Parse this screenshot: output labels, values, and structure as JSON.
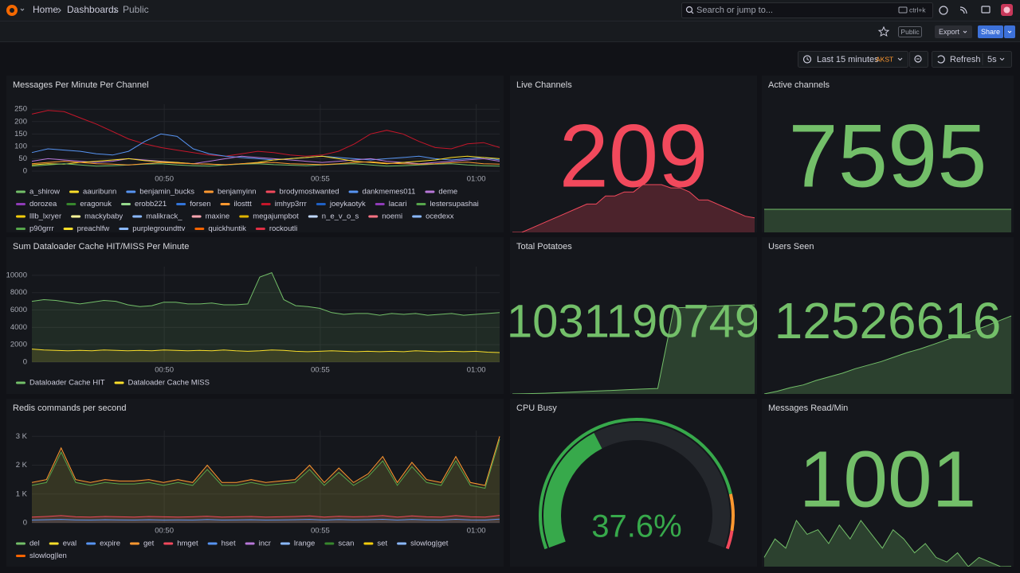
{
  "nav": {
    "breadcrumbs": [
      "Home",
      "Dashboards",
      "Public"
    ],
    "search": "Search or jump to...",
    "shortcut": "ctrl+k"
  },
  "toolbar": {
    "badge": "Public",
    "export": "Export",
    "share": "Share"
  },
  "time_controls": {
    "range": "Last 15 minutes",
    "timezone": "AKST",
    "refresh": "Refresh",
    "interval": "5s"
  },
  "panels": [
    {
      "type": "timeseries",
      "title": "Messages Per Minute Per Channel",
      "ylim": [
        0,
        270
      ],
      "yticks": [
        0,
        50,
        100,
        150,
        200,
        250
      ],
      "xticks": [
        "00:50",
        "00:55",
        "01:00"
      ],
      "fill": false,
      "lines": [
        {
          "color": "#c4162a",
          "values": [
            230,
            245,
            240,
            215,
            190,
            160,
            130,
            110,
            95,
            85,
            75,
            65,
            60,
            70,
            80,
            75,
            65,
            60,
            65,
            80,
            110,
            150,
            165,
            150,
            120,
            95,
            90,
            110,
            115,
            95
          ]
        },
        {
          "color": "#5794f2",
          "values": [
            75,
            90,
            85,
            80,
            70,
            65,
            80,
            120,
            150,
            140,
            90,
            70,
            60,
            55,
            50,
            45,
            50,
            55,
            60,
            55,
            50,
            45,
            50,
            55,
            60,
            50,
            45,
            50,
            55,
            45
          ]
        },
        {
          "color": "#b877d9",
          "values": [
            40,
            50,
            45,
            40,
            35,
            40,
            50,
            45,
            40,
            35,
            30,
            40,
            50,
            60,
            55,
            50,
            45,
            40,
            35,
            40,
            45,
            50,
            40,
            35,
            30,
            35,
            40,
            45,
            50,
            40
          ]
        },
        {
          "color": "#fade2a",
          "values": [
            25,
            30,
            28,
            35,
            40,
            45,
            50,
            42,
            38,
            35,
            30,
            28,
            25,
            30,
            35,
            45,
            50,
            55,
            60,
            50,
            40,
            35,
            30,
            35,
            40,
            45,
            55,
            60,
            55,
            50
          ]
        },
        {
          "color": "#73bf69",
          "values": [
            20,
            25,
            30,
            25,
            20,
            22,
            25,
            28,
            30,
            25,
            22,
            20,
            25,
            28,
            30,
            26,
            24,
            22,
            25,
            28,
            30,
            25,
            20,
            22,
            25,
            28,
            30,
            25,
            22,
            20
          ]
        },
        {
          "color": "#ff9830",
          "values": [
            30,
            35,
            40,
            35,
            30,
            28,
            25,
            30,
            35,
            32,
            30,
            28,
            26,
            30,
            33,
            35,
            30,
            28,
            26,
            30,
            35,
            38,
            32,
            30,
            28,
            30,
            34,
            36,
            30,
            28
          ]
        }
      ],
      "legend": [
        {
          "name": "a_shirow",
          "color": "#73bf69"
        },
        {
          "name": "aauribunn",
          "color": "#fade2a"
        },
        {
          "name": "benjamin_bucks",
          "color": "#5794f2"
        },
        {
          "name": "benjamyinn",
          "color": "#ff9830"
        },
        {
          "name": "brodymostwanted",
          "color": "#f2495c"
        },
        {
          "name": "dankmemes011",
          "color": "#5794f2"
        },
        {
          "name": "deme",
          "color": "#b877d9"
        },
        {
          "name": "dorozea",
          "color": "#8f3bb8"
        },
        {
          "name": "eragonuk",
          "color": "#37872d"
        },
        {
          "name": "erobb221",
          "color": "#96d98d"
        },
        {
          "name": "forsen",
          "color": "#3274d9"
        },
        {
          "name": "ilosttt",
          "color": "#ff9830"
        },
        {
          "name": "imhyp3rrr",
          "color": "#c4162a"
        },
        {
          "name": "joeykaotyk",
          "color": "#1f60c4"
        },
        {
          "name": "lacari",
          "color": "#8f3bb8"
        },
        {
          "name": "lestersupashai",
          "color": "#56a64b"
        },
        {
          "name": "lllb_lxryer",
          "color": "#f2cc0c"
        },
        {
          "name": "mackybaby",
          "color": "#fff899"
        },
        {
          "name": "malikrack_",
          "color": "#8ab8ff"
        },
        {
          "name": "maxine",
          "color": "#ffa6b0"
        },
        {
          "name": "megajumpbot",
          "color": "#e0b400"
        },
        {
          "name": "n_e_v_o_s",
          "color": "#c0d8ff"
        },
        {
          "name": "noemi",
          "color": "#ff7383"
        },
        {
          "name": "ocedexx",
          "color": "#8ab8ff"
        },
        {
          "name": "p90grrr",
          "color": "#56a64b"
        },
        {
          "name": "preachlfw",
          "color": "#fade2a"
        },
        {
          "name": "purplegroundttv",
          "color": "#8ab8ff"
        },
        {
          "name": "quickhuntik",
          "color": "#fa6400"
        },
        {
          "name": "rockoutli",
          "color": "#e02f44"
        }
      ]
    },
    {
      "type": "stat",
      "title": "Live Channels",
      "value": 209,
      "color": "#f2495c",
      "sparkline": [
        150,
        150,
        155,
        160,
        165,
        170,
        175,
        180,
        185,
        185,
        195,
        195,
        200,
        200,
        209,
        209,
        209,
        205,
        205,
        200,
        190,
        190,
        185,
        180,
        175,
        170,
        168
      ]
    },
    {
      "type": "stat",
      "title": "Active channels",
      "value": 7595,
      "color": "#73bf69",
      "sparkline": [
        7595,
        7595,
        7595,
        7595,
        7595
      ]
    },
    {
      "type": "timeseries",
      "title": "Sum Dataloader Cache HIT/MISS Per Minute",
      "ylim": [
        0,
        11000
      ],
      "yticks": [
        0,
        2000,
        4000,
        6000,
        8000,
        10000
      ],
      "xticks": [
        "00:50",
        "00:55",
        "01:00"
      ],
      "fill": true,
      "lines": [
        {
          "color": "#73bf69",
          "values": [
            7000,
            7200,
            7100,
            6900,
            6700,
            6900,
            7100,
            7000,
            6600,
            6400,
            6500,
            6900,
            6900,
            6700,
            6700,
            6800,
            6600,
            6600,
            6700,
            9800,
            10300,
            7200,
            6500,
            6400,
            6200,
            5700,
            5500,
            5600,
            5600,
            5400,
            5600,
            5500,
            5600,
            5400,
            5500,
            5600,
            5400,
            5500,
            5600,
            5700
          ]
        },
        {
          "color": "#fade2a",
          "values": [
            1500,
            1400,
            1350,
            1300,
            1350,
            1300,
            1400,
            1350,
            1300,
            1350,
            1300,
            1400,
            1350,
            1300,
            1350,
            1300,
            1400,
            1300,
            1250,
            1300,
            1400,
            1350,
            1250,
            1200,
            1250,
            1300,
            1250,
            1200,
            1250,
            1200,
            1250,
            1200,
            1300,
            1250,
            1200,
            1250,
            1200,
            1250,
            1150,
            1100
          ]
        }
      ],
      "legend": [
        {
          "name": "Dataloader Cache HIT",
          "color": "#73bf69"
        },
        {
          "name": "Dataloader Cache MISS",
          "color": "#fade2a"
        }
      ]
    },
    {
      "type": "stat",
      "title": "Total Potatoes",
      "value": 1031190749,
      "color": "#73bf69",
      "sparkline": [
        1028600000,
        1028610000,
        1028620000,
        1028640000,
        1028660000,
        1028680000,
        1028700000,
        1028720000,
        1028740000,
        1028760000,
        1031100000,
        1031120000,
        1031140000,
        1031160000,
        1031180000,
        1031190749
      ]
    },
    {
      "type": "stat",
      "title": "Users Seen",
      "value": 12526616,
      "color": "#73bf69",
      "sparkline": [
        12440000,
        12443000,
        12447000,
        12450000,
        12455000,
        12459000,
        12463000,
        12468000,
        12472000,
        12476000,
        12481000,
        12486000,
        12490000,
        12495000,
        12500000,
        12505000,
        12510000,
        12515000,
        12521000,
        12526616
      ]
    },
    {
      "type": "timeseries",
      "title": "Redis commands per second",
      "ylim": [
        0,
        3200
      ],
      "yticks": [
        0,
        {
          "value": 1000,
          "label": "1 K"
        },
        {
          "value": 2000,
          "label": "2 K"
        },
        {
          "value": 3000,
          "label": "3 K"
        }
      ],
      "xticks": [
        "00:50",
        "00:55",
        "01:00"
      ],
      "fill": true,
      "lines": [
        {
          "color": "#ff9830",
          "values": [
            1400,
            1500,
            2600,
            1500,
            1400,
            1500,
            1450,
            1450,
            1500,
            1400,
            1500,
            1400,
            2000,
            1400,
            1400,
            1500,
            1400,
            1450,
            1500,
            2000,
            1400,
            1900,
            1400,
            1700,
            2300,
            1400,
            2100,
            1500,
            1400,
            2300,
            1400,
            1300,
            3000
          ]
        },
        {
          "color": "#56a64b",
          "values": [
            1300,
            1400,
            2450,
            1400,
            1300,
            1400,
            1350,
            1350,
            1400,
            1300,
            1400,
            1300,
            1850,
            1300,
            1300,
            1400,
            1300,
            1350,
            1400,
            1850,
            1300,
            1750,
            1300,
            1600,
            2150,
            1300,
            1950,
            1400,
            1300,
            2150,
            1300,
            1200,
            2900
          ]
        },
        {
          "color": "#f2495c",
          "values": [
            200,
            220,
            250,
            210,
            200,
            220,
            210,
            200,
            220,
            210,
            200,
            210,
            230,
            200,
            210,
            220,
            200,
            210,
            220,
            240,
            200,
            230,
            210,
            220,
            250,
            200,
            240,
            210,
            200,
            250,
            210,
            200,
            260
          ]
        },
        {
          "color": "#5794f2",
          "values": [
            100,
            110,
            120,
            105,
            100,
            110,
            105,
            100,
            110,
            100,
            105,
            100,
            115,
            100,
            105,
            110,
            100,
            105,
            110,
            120,
            100,
            115,
            105,
            110,
            125,
            100,
            120,
            105,
            100,
            125,
            105,
            100,
            130
          ]
        }
      ],
      "legend": [
        {
          "name": "del",
          "color": "#73bf69"
        },
        {
          "name": "eval",
          "color": "#fade2a"
        },
        {
          "name": "expire",
          "color": "#5794f2"
        },
        {
          "name": "get",
          "color": "#ff9830"
        },
        {
          "name": "hmget",
          "color": "#f2495c"
        },
        {
          "name": "hset",
          "color": "#5794f2"
        },
        {
          "name": "incr",
          "color": "#b877d9"
        },
        {
          "name": "lrange",
          "color": "#8ab8ff"
        },
        {
          "name": "scan",
          "color": "#37872d"
        },
        {
          "name": "set",
          "color": "#f2cc0c"
        },
        {
          "name": "slowlog|get",
          "color": "#8ab8ff"
        },
        {
          "name": "slowlog|len",
          "color": "#fa6400"
        }
      ]
    },
    {
      "type": "gauge",
      "title": "CPU Busy",
      "value": 37.6,
      "value_label": "37.6%",
      "range": [
        0,
        100
      ],
      "color": "#37a94b",
      "thresholds": [
        {
          "value": 85,
          "color": "#ff9830"
        },
        {
          "value": 95,
          "color": "#f2495c"
        }
      ]
    },
    {
      "type": "stat",
      "title": "Messages Read/Min",
      "value": 1001,
      "color": "#73bf69",
      "sparkline": [
        1100,
        1300,
        1200,
        1500,
        1350,
        1400,
        1250,
        1450,
        1300,
        1500,
        1350,
        1200,
        1400,
        1300,
        1150,
        1250,
        1100,
        1050,
        1150,
        1000,
        1100,
        1050,
        1000,
        1001
      ]
    }
  ]
}
